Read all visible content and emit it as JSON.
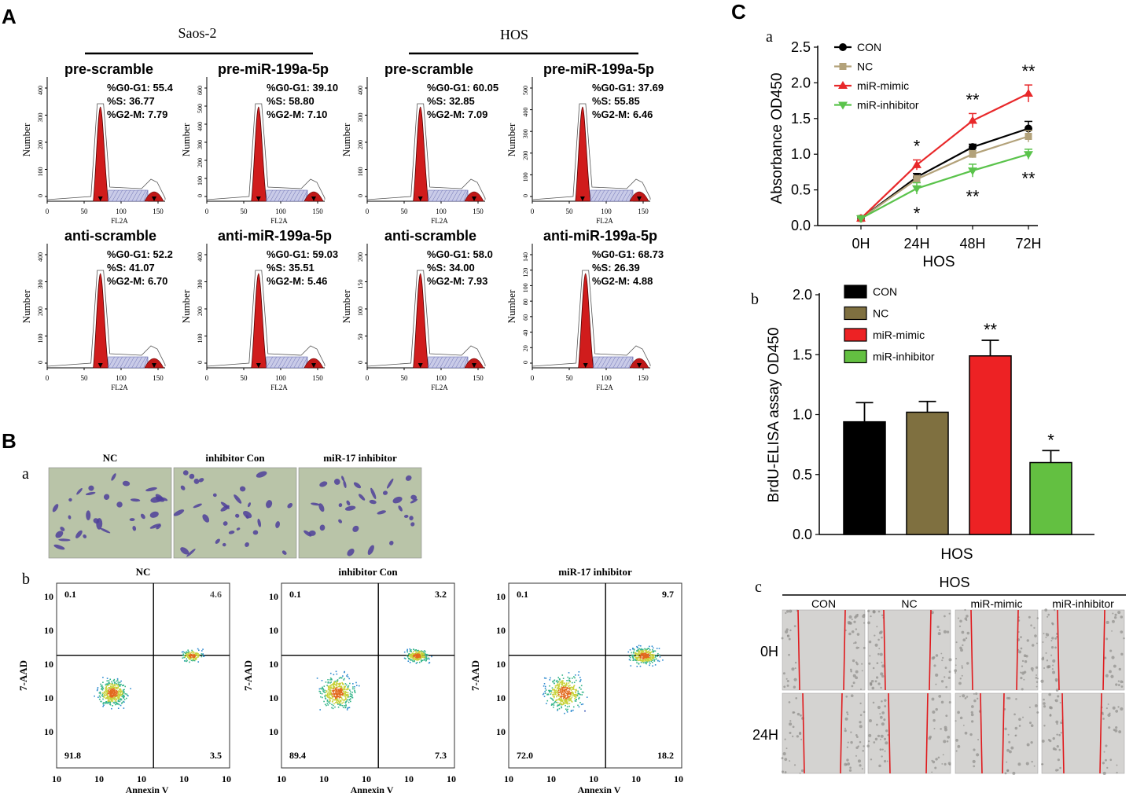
{
  "panel_labels": {
    "A": "A",
    "B": "B",
    "C": "C"
  },
  "sub_labels": {
    "Ba": "a",
    "Bb": "b",
    "Ca": "a",
    "Cb": "b",
    "Cc": "c"
  },
  "panelA": {
    "groups": [
      "Saos-2",
      "HOS"
    ],
    "xlabel": "FL2A",
    "ylabel": "Number",
    "xticks": [
      "0",
      "50",
      "100",
      "150"
    ],
    "histograms": [
      {
        "title": "pre-scramble",
        "g0": "%G0-G1: 55.4",
        "s": "%S: 36.77",
        "g2": "%G2-M: 7.79",
        "yticks": [
          "0",
          "100",
          "200",
          "300",
          "400"
        ],
        "peak_x": 72
      },
      {
        "title": "pre-miR-199a-5p",
        "g0": "%G0-G1: 39.10",
        "s": "%S: 58.80",
        "g2": "%G2-M: 7.10",
        "yticks": [
          "0",
          "100",
          "200",
          "300",
          "400",
          "500",
          "600"
        ],
        "peak_x": 70
      },
      {
        "title": "pre-scramble",
        "g0": "%G0-G1: 60.05",
        "s": "%S: 32.85",
        "g2": "%G2-M: 7.09",
        "yticks": [
          "0",
          "100",
          "200",
          "300",
          "400"
        ],
        "peak_x": 72
      },
      {
        "title": "pre-miR-199a-5p",
        "g0": "%G0-G1: 37.69",
        "s": "%S: 55.85",
        "g2": "%G2-M: 6.46",
        "yticks": [
          "0",
          "100",
          "200",
          "300",
          "400",
          "500"
        ],
        "peak_x": 68
      },
      {
        "title": "anti-scramble",
        "g0": "%G0-G1: 52.2",
        "s": "%S: 41.07",
        "g2": "%G2-M: 6.70",
        "yticks": [
          "0",
          "100",
          "200",
          "300",
          "400"
        ],
        "peak_x": 72
      },
      {
        "title": "anti-miR-199a-5p",
        "g0": "%G0-G1: 59.03",
        "s": "%S: 35.51",
        "g2": "%G2-M: 5.46",
        "yticks": [
          "0",
          "100",
          "200",
          "300",
          "400"
        ],
        "peak_x": 70
      },
      {
        "title": "anti-scramble",
        "g0": "%G0-G1: 58.0",
        "s": "%S: 34.00",
        "g2": "%G2-M: 7.93",
        "yticks": [
          "0",
          "50",
          "100",
          "150",
          "200"
        ],
        "peak_x": 72
      },
      {
        "title": "anti-miR-199a-5p",
        "g0": "%G0-G1: 68.73",
        "s": "%S: 26.39",
        "g2": "%G2-M: 4.88",
        "yticks": [
          "0",
          "20",
          "40",
          "60",
          "80",
          "100",
          "120",
          "140"
        ],
        "peak_x": 72
      }
    ]
  },
  "panelBa": {
    "labels": [
      "NC",
      "inhibitor Con",
      "miR-17 inhibitor"
    ]
  },
  "panelBb": {
    "xlabel": "Annexin V",
    "ylabel": "7-AAD",
    "ticks": [
      "10",
      "10",
      "10",
      "10",
      "10"
    ],
    "plots": [
      {
        "title": "NC",
        "ul": "0.1",
        "ur": "4.6",
        "ll": "91.8",
        "lr": "3.5"
      },
      {
        "title": "inhibitor Con",
        "ul": "0.1",
        "ur": "3.2",
        "ll": "89.4",
        "lr": "7.3"
      },
      {
        "title": "miR-17 inhibitor",
        "ul": "0.1",
        "ur": "9.7",
        "ll": "72.0",
        "lr": "18.2"
      }
    ]
  },
  "colors": {
    "CON": "#000000",
    "NC": "#b3a27a",
    "mimic": "#e8282a",
    "inhibitor": "#5ac34b",
    "bar_NC": "#7f7040",
    "bar_mimic": "#ed2224",
    "bar_inhibitor": "#63c041"
  },
  "chart_data": [
    {
      "type": "line",
      "title": "",
      "xlabel": "HOS",
      "ylabel": "Absorbance OD450",
      "categories": [
        "0H",
        "24H",
        "48H",
        "72H"
      ],
      "ylim": [
        0.0,
        2.5
      ],
      "yticks": [
        "0.0",
        "0.5",
        "1.0",
        "1.5",
        "2.0",
        "2.5"
      ],
      "series": [
        {
          "name": "CON",
          "values": [
            0.1,
            0.68,
            1.1,
            1.36
          ],
          "errors": [
            0.02,
            0.05,
            0.04,
            0.1
          ]
        },
        {
          "name": "NC",
          "values": [
            0.1,
            0.65,
            1.0,
            1.25
          ],
          "errors": [
            0.02,
            0.05,
            0.05,
            0.08
          ]
        },
        {
          "name": "miR-mimic",
          "values": [
            0.1,
            0.85,
            1.47,
            1.85
          ],
          "errors": [
            0.02,
            0.07,
            0.1,
            0.12
          ]
        },
        {
          "name": "miR-inhibitor",
          "values": [
            0.1,
            0.52,
            0.77,
            1.0
          ],
          "errors": [
            0.02,
            0.08,
            0.09,
            0.07
          ]
        }
      ],
      "annotations": [
        {
          "text": "*",
          "category": "24H",
          "series": "miR-mimic"
        },
        {
          "text": "*",
          "category": "24H",
          "series": "miR-inhibitor"
        },
        {
          "text": "**",
          "category": "48H",
          "series": "miR-mimic"
        },
        {
          "text": "**",
          "category": "48H",
          "series": "miR-inhibitor"
        },
        {
          "text": "**",
          "category": "72H",
          "series": "miR-mimic"
        },
        {
          "text": "**",
          "category": "72H",
          "series": "miR-inhibitor"
        }
      ]
    },
    {
      "type": "bar",
      "title": "",
      "xlabel": "HOS",
      "ylabel": "BrdU-ELISA assay OD450",
      "categories": [
        "CON",
        "NC",
        "miR-mimic",
        "miR-inhibitor"
      ],
      "values": [
        0.94,
        1.02,
        1.49,
        0.6
      ],
      "errors": [
        0.16,
        0.09,
        0.13,
        0.1
      ],
      "ylim": [
        0.0,
        2.0
      ],
      "yticks": [
        "0.0",
        "0.5",
        "1.0",
        "1.5",
        "2.0"
      ],
      "annotations": [
        "",
        "",
        "**",
        "*"
      ]
    }
  ],
  "panelCc": {
    "title": "HOS",
    "columns": [
      "CON",
      "NC",
      "miR-mimic",
      "miR-inhibitor"
    ],
    "rows": [
      "0H",
      "24H"
    ]
  }
}
